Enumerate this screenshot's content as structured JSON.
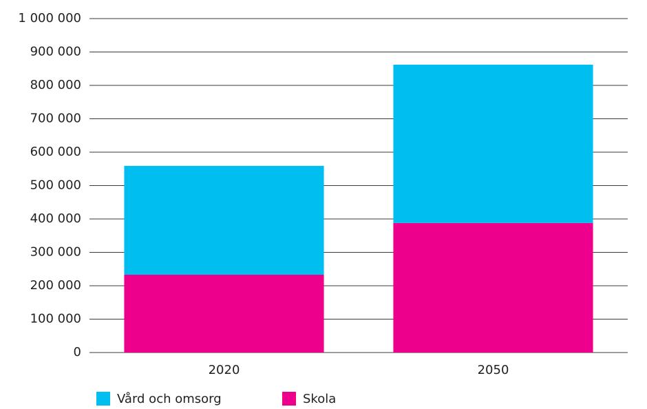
{
  "chart_data": {
    "type": "stacked_bar",
    "categories": [
      "2020",
      "2050"
    ],
    "series": [
      {
        "name": "Vård och omsorg",
        "color": "#00bef0",
        "values": [
          326000,
          474000
        ]
      },
      {
        "name": "Skola",
        "color": "#ec008c",
        "values": [
          233000,
          388000
        ]
      }
    ],
    "ylim": [
      0,
      1000000
    ],
    "yticks": [
      0,
      {
        "value": 100000,
        "label": "100 000"
      },
      {
        "value": 200000,
        "label": "200 000"
      },
      {
        "value": 300000,
        "label": "300 000"
      },
      {
        "value": 400000,
        "label": "400 000"
      },
      {
        "value": 500000,
        "label": "500 000"
      },
      {
        "value": 600000,
        "label": "600 000"
      },
      {
        "value": 700000,
        "label": "700 000"
      },
      {
        "value": 800000,
        "label": "800 000"
      },
      {
        "value": 900000,
        "label": "900 000"
      },
      {
        "value": 1000000,
        "label": "1 000 000"
      }
    ],
    "grid": true,
    "legend": "bottom"
  }
}
